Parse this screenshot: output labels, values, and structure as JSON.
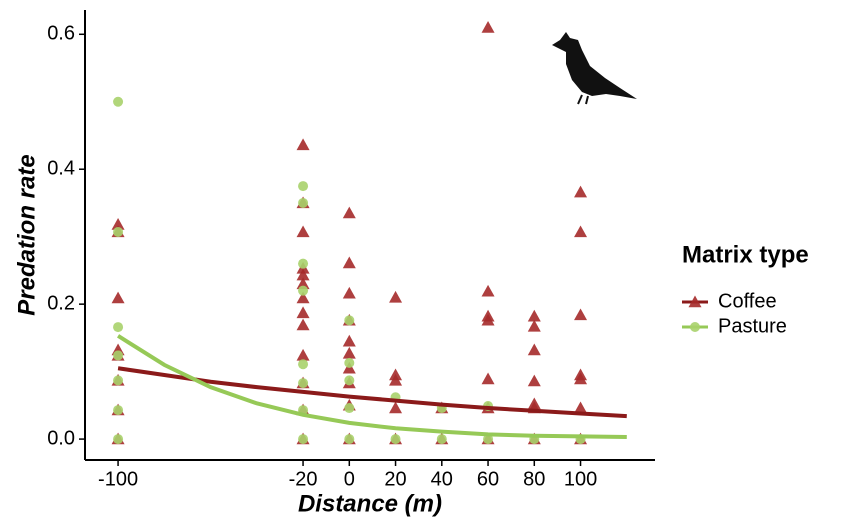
{
  "chart_data": {
    "type": "scatter",
    "xlabel": "Distance (m)",
    "ylabel": "Predation rate",
    "xlim": [
      -114.3,
      132.2
    ],
    "ylim": [
      -0.031,
      0.636
    ],
    "xticks": [
      -100,
      -20,
      0,
      20,
      40,
      60,
      80,
      100
    ],
    "yticks": [
      {
        "value": 0,
        "label": "0.0"
      },
      0.2,
      0.4,
      0.6
    ],
    "legend_title": "Matrix type",
    "legend": "right",
    "series": [
      {
        "name": "Coffee",
        "color": "#a52a2a",
        "marker": "triangle",
        "line_color": "#8b1a1a",
        "x": [
          -100,
          -100,
          -100,
          -100,
          -100,
          -100,
          -100,
          -100,
          -20,
          -20,
          -20,
          -20,
          -20,
          -20,
          -20,
          -20,
          -20,
          -20,
          -20,
          -20,
          -20,
          0,
          0,
          0,
          0,
          0,
          0,
          0,
          0,
          0,
          0,
          20,
          20,
          20,
          20,
          20,
          40,
          40,
          60,
          60,
          60,
          60,
          60,
          60,
          60,
          80,
          80,
          80,
          80,
          80,
          80,
          80,
          100,
          100,
          100,
          100,
          100,
          100,
          100
        ],
        "values": [
          0.318,
          0.307,
          0.209,
          0.132,
          0.124,
          0.087,
          0.043,
          0,
          0.436,
          0.35,
          0.307,
          0.253,
          0.243,
          0.23,
          0.209,
          0.187,
          0.169,
          0.124,
          0.083,
          0.043,
          0,
          0.335,
          0.261,
          0.216,
          0.176,
          0.145,
          0.127,
          0.105,
          0.083,
          0.05,
          0,
          0.21,
          0.095,
          0.087,
          0.046,
          0,
          0.046,
          0,
          0.61,
          0.219,
          0.182,
          0.176,
          0.089,
          0.046,
          0,
          0.182,
          0.167,
          0.132,
          0.086,
          0.052,
          0.046,
          0,
          0.366,
          0.307,
          0.184,
          0.095,
          0.089,
          0.046,
          0
        ],
        "fit": {
          "x": [
            -100,
            -80,
            -60,
            -40,
            -20,
            0,
            20,
            40,
            60,
            80,
            100,
            120
          ],
          "values": [
            0.105,
            0.095,
            0.085,
            0.077,
            0.07,
            0.063,
            0.057,
            0.051,
            0.046,
            0.042,
            0.038,
            0.034
          ]
        }
      },
      {
        "name": "Pasture",
        "color": "#a8d26c",
        "marker": "circle",
        "line_color": "#96c957",
        "x": [
          -100,
          -100,
          -100,
          -100,
          -100,
          -100,
          -100,
          -20,
          -20,
          -20,
          -20,
          -20,
          -20,
          -20,
          -20,
          0,
          0,
          0,
          0,
          0,
          20,
          20,
          40,
          40,
          60,
          60,
          80,
          100
        ],
        "values": [
          0.5,
          0.307,
          0.166,
          0.124,
          0.087,
          0.043,
          0,
          0.375,
          0.35,
          0.26,
          0.22,
          0.111,
          0.083,
          0.043,
          0,
          0.176,
          0.113,
          0.087,
          0.046,
          0,
          0.062,
          0,
          0.046,
          0,
          0.049,
          0,
          0,
          0
        ],
        "fit": {
          "x": [
            -100,
            -80,
            -60,
            -40,
            -20,
            0,
            20,
            40,
            60,
            80,
            100,
            120
          ],
          "values": [
            0.153,
            0.11,
            0.077,
            0.053,
            0.036,
            0.024,
            0.016,
            0.011,
            0.007,
            0.005,
            0.004,
            0.003
          ]
        }
      }
    ]
  }
}
